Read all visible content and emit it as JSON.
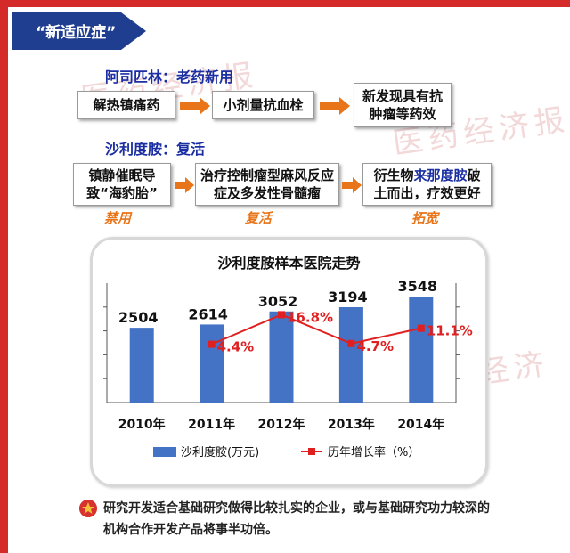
{
  "header": {
    "tag": "“新适应症”"
  },
  "aspirin": {
    "title": "阿司匹林：老药新用",
    "steps": [
      "解热镇痛药",
      "小剂量抗血栓",
      "新发现具有抗肿瘤等药效"
    ]
  },
  "thalidomide": {
    "title": "沙利度胺：复活",
    "steps": [
      {
        "text": "镇静催眠导致“海豹胎”",
        "label": "禁用"
      },
      {
        "text": "治疗控制瘤型麻风反应症及多发性骨髓瘤",
        "label": "复活"
      },
      {
        "pre": "衍生物",
        "highlight": "来那度胺",
        "post": "破土而出，疗效更好",
        "label": "拓宽"
      }
    ]
  },
  "chart_data": {
    "type": "bar",
    "title": "沙利度胺样本医院走势",
    "categories": [
      "2010年",
      "2011年",
      "2012年",
      "2013年",
      "2014年"
    ],
    "series": [
      {
        "name": "沙利度胺(万元)",
        "type": "bar",
        "values": [
          2504,
          2614,
          3052,
          3194,
          3548
        ],
        "value_labels": [
          "2504",
          "2614",
          "3052",
          "3194",
          "3548"
        ]
      },
      {
        "name": "历年增长率（%）",
        "type": "line",
        "values": [
          null,
          4.4,
          16.8,
          4.7,
          11.1
        ],
        "value_labels": [
          "",
          "4.4%",
          "16.8%",
          "4.7%",
          "11.1%"
        ]
      }
    ],
    "ylim": [
      0,
      4000
    ],
    "y2lim": [
      -20,
      30
    ],
    "legend": "bottom",
    "colors": {
      "bar": "#4472c4",
      "line": "#e02020"
    }
  },
  "footer": {
    "icon": "star-badge-icon",
    "text": "研究开发适合基础研究做得比较扎实的企业，或与基础研究功力较深的机构合作开发产品将事半功倍。"
  },
  "watermark": {
    "text": "医药经济报"
  }
}
